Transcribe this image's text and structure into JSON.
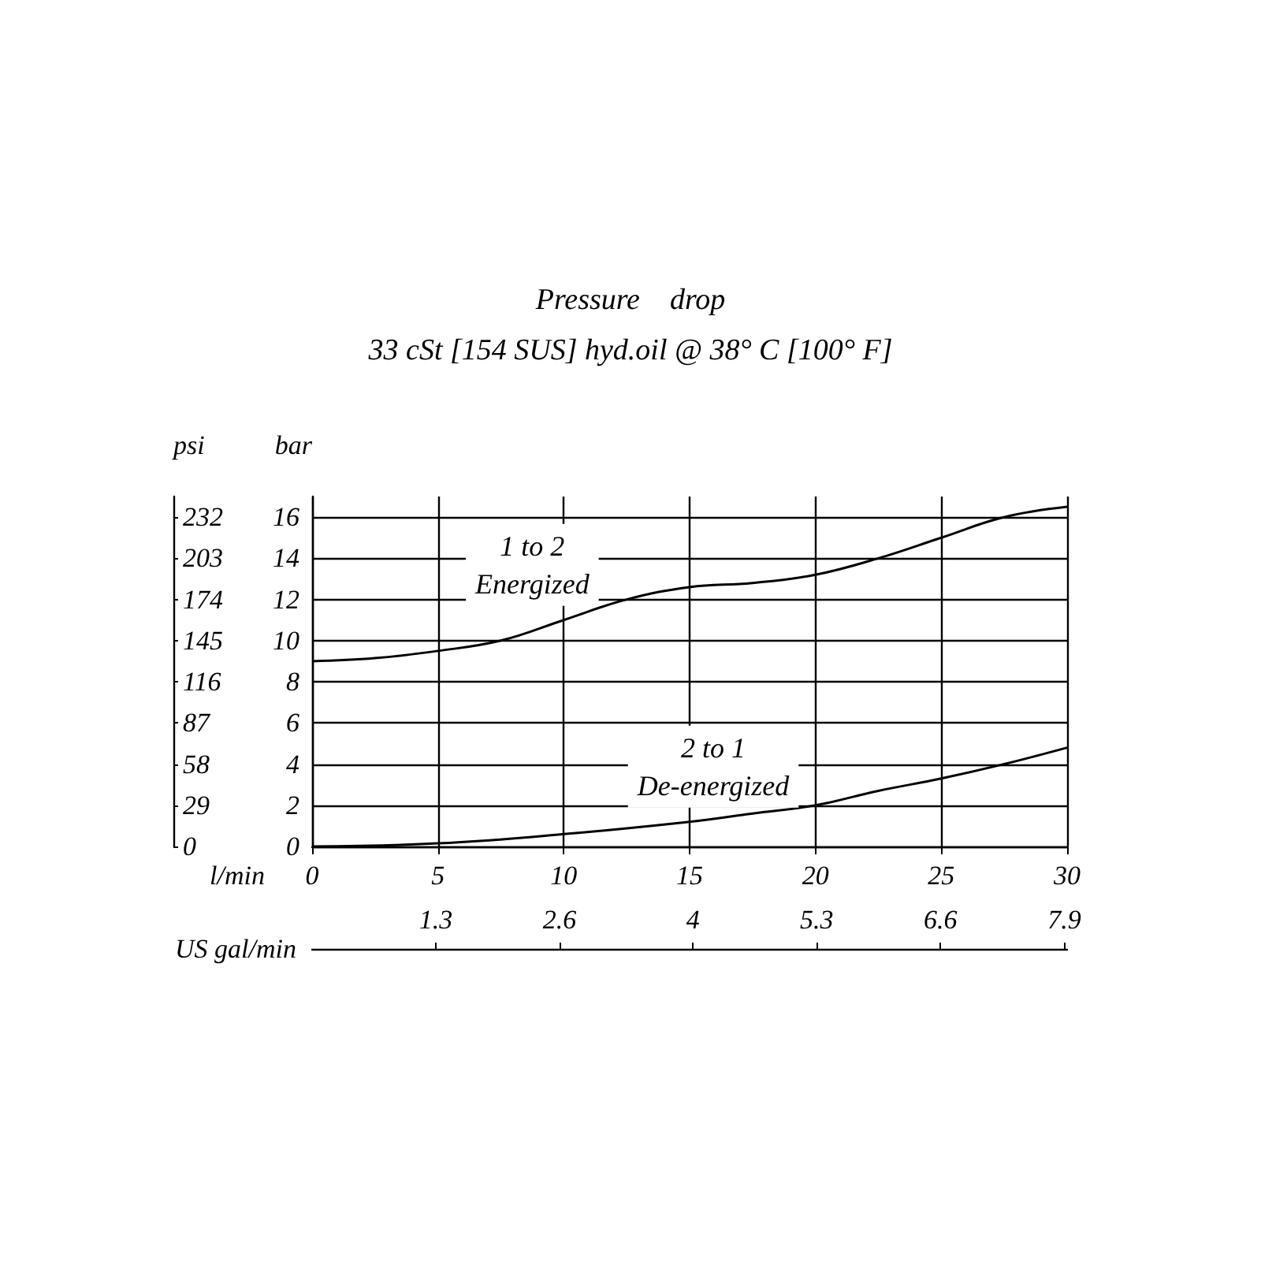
{
  "chart_data": {
    "type": "line",
    "title": "Pressure    drop",
    "subtitle": "33 cSt [154 SUS] hyd.oil @ 38° C [100° F]",
    "xlabel": "l/min",
    "ylabel": "bar",
    "y2label": "psi",
    "x2label": "US gal/min",
    "xlim": [
      0,
      30
    ],
    "xticks": [
      0,
      5,
      10,
      15,
      20,
      25,
      30
    ],
    "ylim": [
      0,
      17
    ],
    "yticks": [
      0,
      2,
      4,
      6,
      8,
      10,
      12,
      14,
      16
    ],
    "y2lim": [
      0,
      246.5
    ],
    "y2ticks": [
      0,
      29,
      58,
      87,
      116,
      145,
      174,
      203,
      232
    ],
    "x2lim": [
      0,
      7.93
    ],
    "x2ticks": [
      1.3,
      2.6,
      4,
      5.3,
      6.6,
      7.9
    ],
    "grid": true,
    "legend": false,
    "marker": "none",
    "line_style": "solid",
    "series": [
      {
        "name": "1 to 2\nEnergized",
        "color": "#000000",
        "x": [
          0,
          2.5,
          5,
          7.5,
          10,
          12.5,
          15,
          17.5,
          20,
          22.5,
          25,
          27.5,
          30
        ],
        "values": [
          9.0,
          9.15,
          9.5,
          10.0,
          11.0,
          12.0,
          12.6,
          12.8,
          13.2,
          14.0,
          15.0,
          16.0,
          16.5
        ]
      },
      {
        "name": "2 to 1\nDe-energized",
        "color": "#000000",
        "x": [
          0,
          5,
          10,
          15,
          17.5,
          20,
          22.5,
          25,
          27.5,
          30
        ],
        "values": [
          0,
          0.15,
          0.6,
          1.2,
          1.6,
          2.0,
          2.7,
          3.3,
          4.0,
          4.8
        ]
      }
    ]
  }
}
